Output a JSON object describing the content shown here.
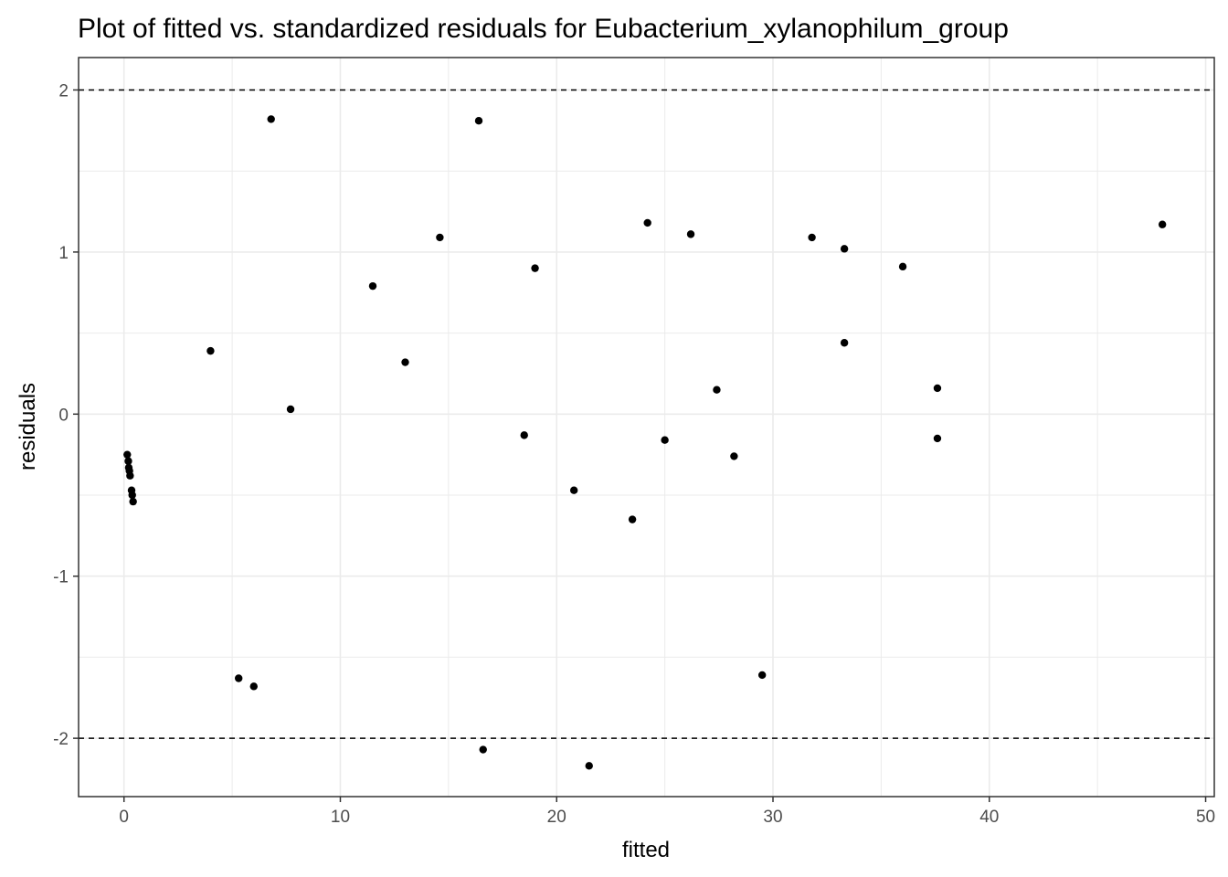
{
  "chart_data": {
    "type": "scatter",
    "title": "Plot of fitted vs. standardized residuals for Eubacterium_xylanophilum_group",
    "xlabel": "fitted",
    "ylabel": "residuals",
    "xlim": [
      -2.1,
      50.4
    ],
    "ylim": [
      -2.36,
      2.2
    ],
    "x_ticks": [
      0,
      10,
      20,
      30,
      40,
      50
    ],
    "x_tick_labels": [
      "0",
      "10",
      "20",
      "30",
      "40",
      "50"
    ],
    "y_ticks": [
      -2,
      -1,
      0,
      1,
      2
    ],
    "y_tick_labels": [
      "-2",
      "-1",
      "0",
      "1",
      "2"
    ],
    "grid": true,
    "reference_lines": [
      2,
      -2
    ],
    "colors": {
      "points": "#000000",
      "grid": "#ebebeb",
      "panel_border": "#333333",
      "reference_line": "#000000"
    },
    "points": [
      {
        "x": 0.15,
        "y": -0.25
      },
      {
        "x": 0.2,
        "y": -0.29
      },
      {
        "x": 0.22,
        "y": -0.33
      },
      {
        "x": 0.25,
        "y": -0.35
      },
      {
        "x": 0.28,
        "y": -0.38
      },
      {
        "x": 0.35,
        "y": -0.47
      },
      {
        "x": 0.38,
        "y": -0.5
      },
      {
        "x": 0.42,
        "y": -0.54
      },
      {
        "x": 4.0,
        "y": 0.39
      },
      {
        "x": 5.3,
        "y": -1.63
      },
      {
        "x": 6.0,
        "y": -1.68
      },
      {
        "x": 6.8,
        "y": 1.82
      },
      {
        "x": 7.7,
        "y": 0.03
      },
      {
        "x": 11.5,
        "y": 0.79
      },
      {
        "x": 13.0,
        "y": 0.32
      },
      {
        "x": 14.6,
        "y": 1.09
      },
      {
        "x": 16.4,
        "y": 1.81
      },
      {
        "x": 16.6,
        "y": -2.07
      },
      {
        "x": 18.5,
        "y": -0.13
      },
      {
        "x": 19.0,
        "y": 0.9
      },
      {
        "x": 20.8,
        "y": -0.47
      },
      {
        "x": 21.5,
        "y": -2.17
      },
      {
        "x": 23.5,
        "y": -0.65
      },
      {
        "x": 24.2,
        "y": 1.18
      },
      {
        "x": 25.0,
        "y": -0.16
      },
      {
        "x": 26.2,
        "y": 1.11
      },
      {
        "x": 27.4,
        "y": 0.15
      },
      {
        "x": 28.2,
        "y": -0.26
      },
      {
        "x": 29.5,
        "y": -1.61
      },
      {
        "x": 31.8,
        "y": 1.09
      },
      {
        "x": 33.3,
        "y": 1.02
      },
      {
        "x": 33.3,
        "y": 0.44
      },
      {
        "x": 36.0,
        "y": 0.91
      },
      {
        "x": 37.6,
        "y": 0.16
      },
      {
        "x": 37.6,
        "y": -0.15
      },
      {
        "x": 48.0,
        "y": 1.17
      }
    ]
  }
}
